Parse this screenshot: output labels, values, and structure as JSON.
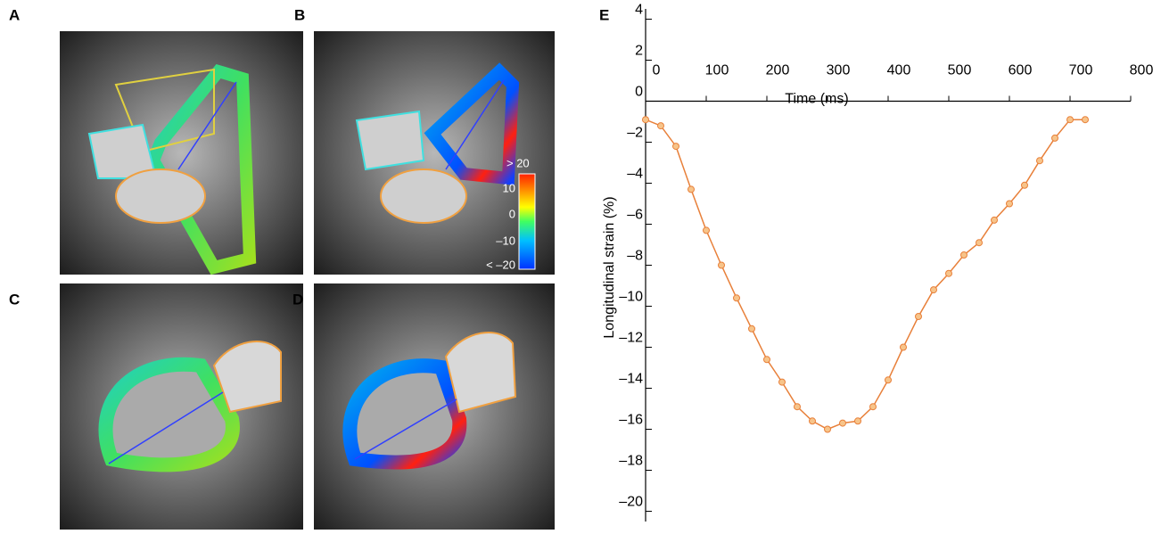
{
  "figure": {
    "panels": [
      "A",
      "B",
      "C",
      "D",
      "E"
    ],
    "colorbar_labels": [
      "> 20",
      "10",
      "0",
      "–10",
      "< –20"
    ]
  },
  "chart_data": {
    "type": "line",
    "xlabel": "Time (ms)",
    "ylabel": "Longitudinal strain (%)",
    "x": [
      0,
      25,
      50,
      75,
      100,
      125,
      150,
      175,
      200,
      225,
      250,
      275,
      300,
      325,
      350,
      375,
      400,
      425,
      450,
      475,
      500,
      525,
      550,
      575,
      600,
      625,
      650,
      675,
      700,
      725
    ],
    "series": [
      {
        "color": "#e8803a",
        "marker_fill": "#f7c48a",
        "values": [
          -0.9,
          -1.2,
          -2.2,
          -4.3,
          -6.3,
          -8.0,
          -9.6,
          -11.1,
          -12.6,
          -13.7,
          -14.9,
          -15.6,
          -16.0,
          -15.7,
          -15.6,
          -14.9,
          -13.6,
          -12.0,
          -10.5,
          -9.2,
          -8.4,
          -7.5,
          -6.9,
          -5.8,
          -5.0,
          -4.1,
          -2.9,
          -1.8,
          -0.9,
          -0.9
        ]
      }
    ],
    "xlim": [
      0,
      800
    ],
    "xticks": [
      0,
      100,
      200,
      300,
      400,
      500,
      600,
      700,
      800
    ],
    "ylim": [
      -20.5,
      4.5
    ],
    "yticks": [
      {
        "value": -20,
        "label": "–20"
      },
      {
        "value": -18,
        "label": "–18"
      },
      {
        "value": -16,
        "label": "–16"
      },
      {
        "value": -14,
        "label": "–14"
      },
      {
        "value": -12,
        "label": "–12"
      },
      {
        "value": -10,
        "label": "–10"
      },
      {
        "value": -8,
        "label": "–8"
      },
      {
        "value": -6,
        "label": "–6"
      },
      {
        "value": -4,
        "label": "–4"
      },
      {
        "value": -2,
        "label": "–2"
      },
      0,
      2,
      4
    ],
    "grid": false
  }
}
